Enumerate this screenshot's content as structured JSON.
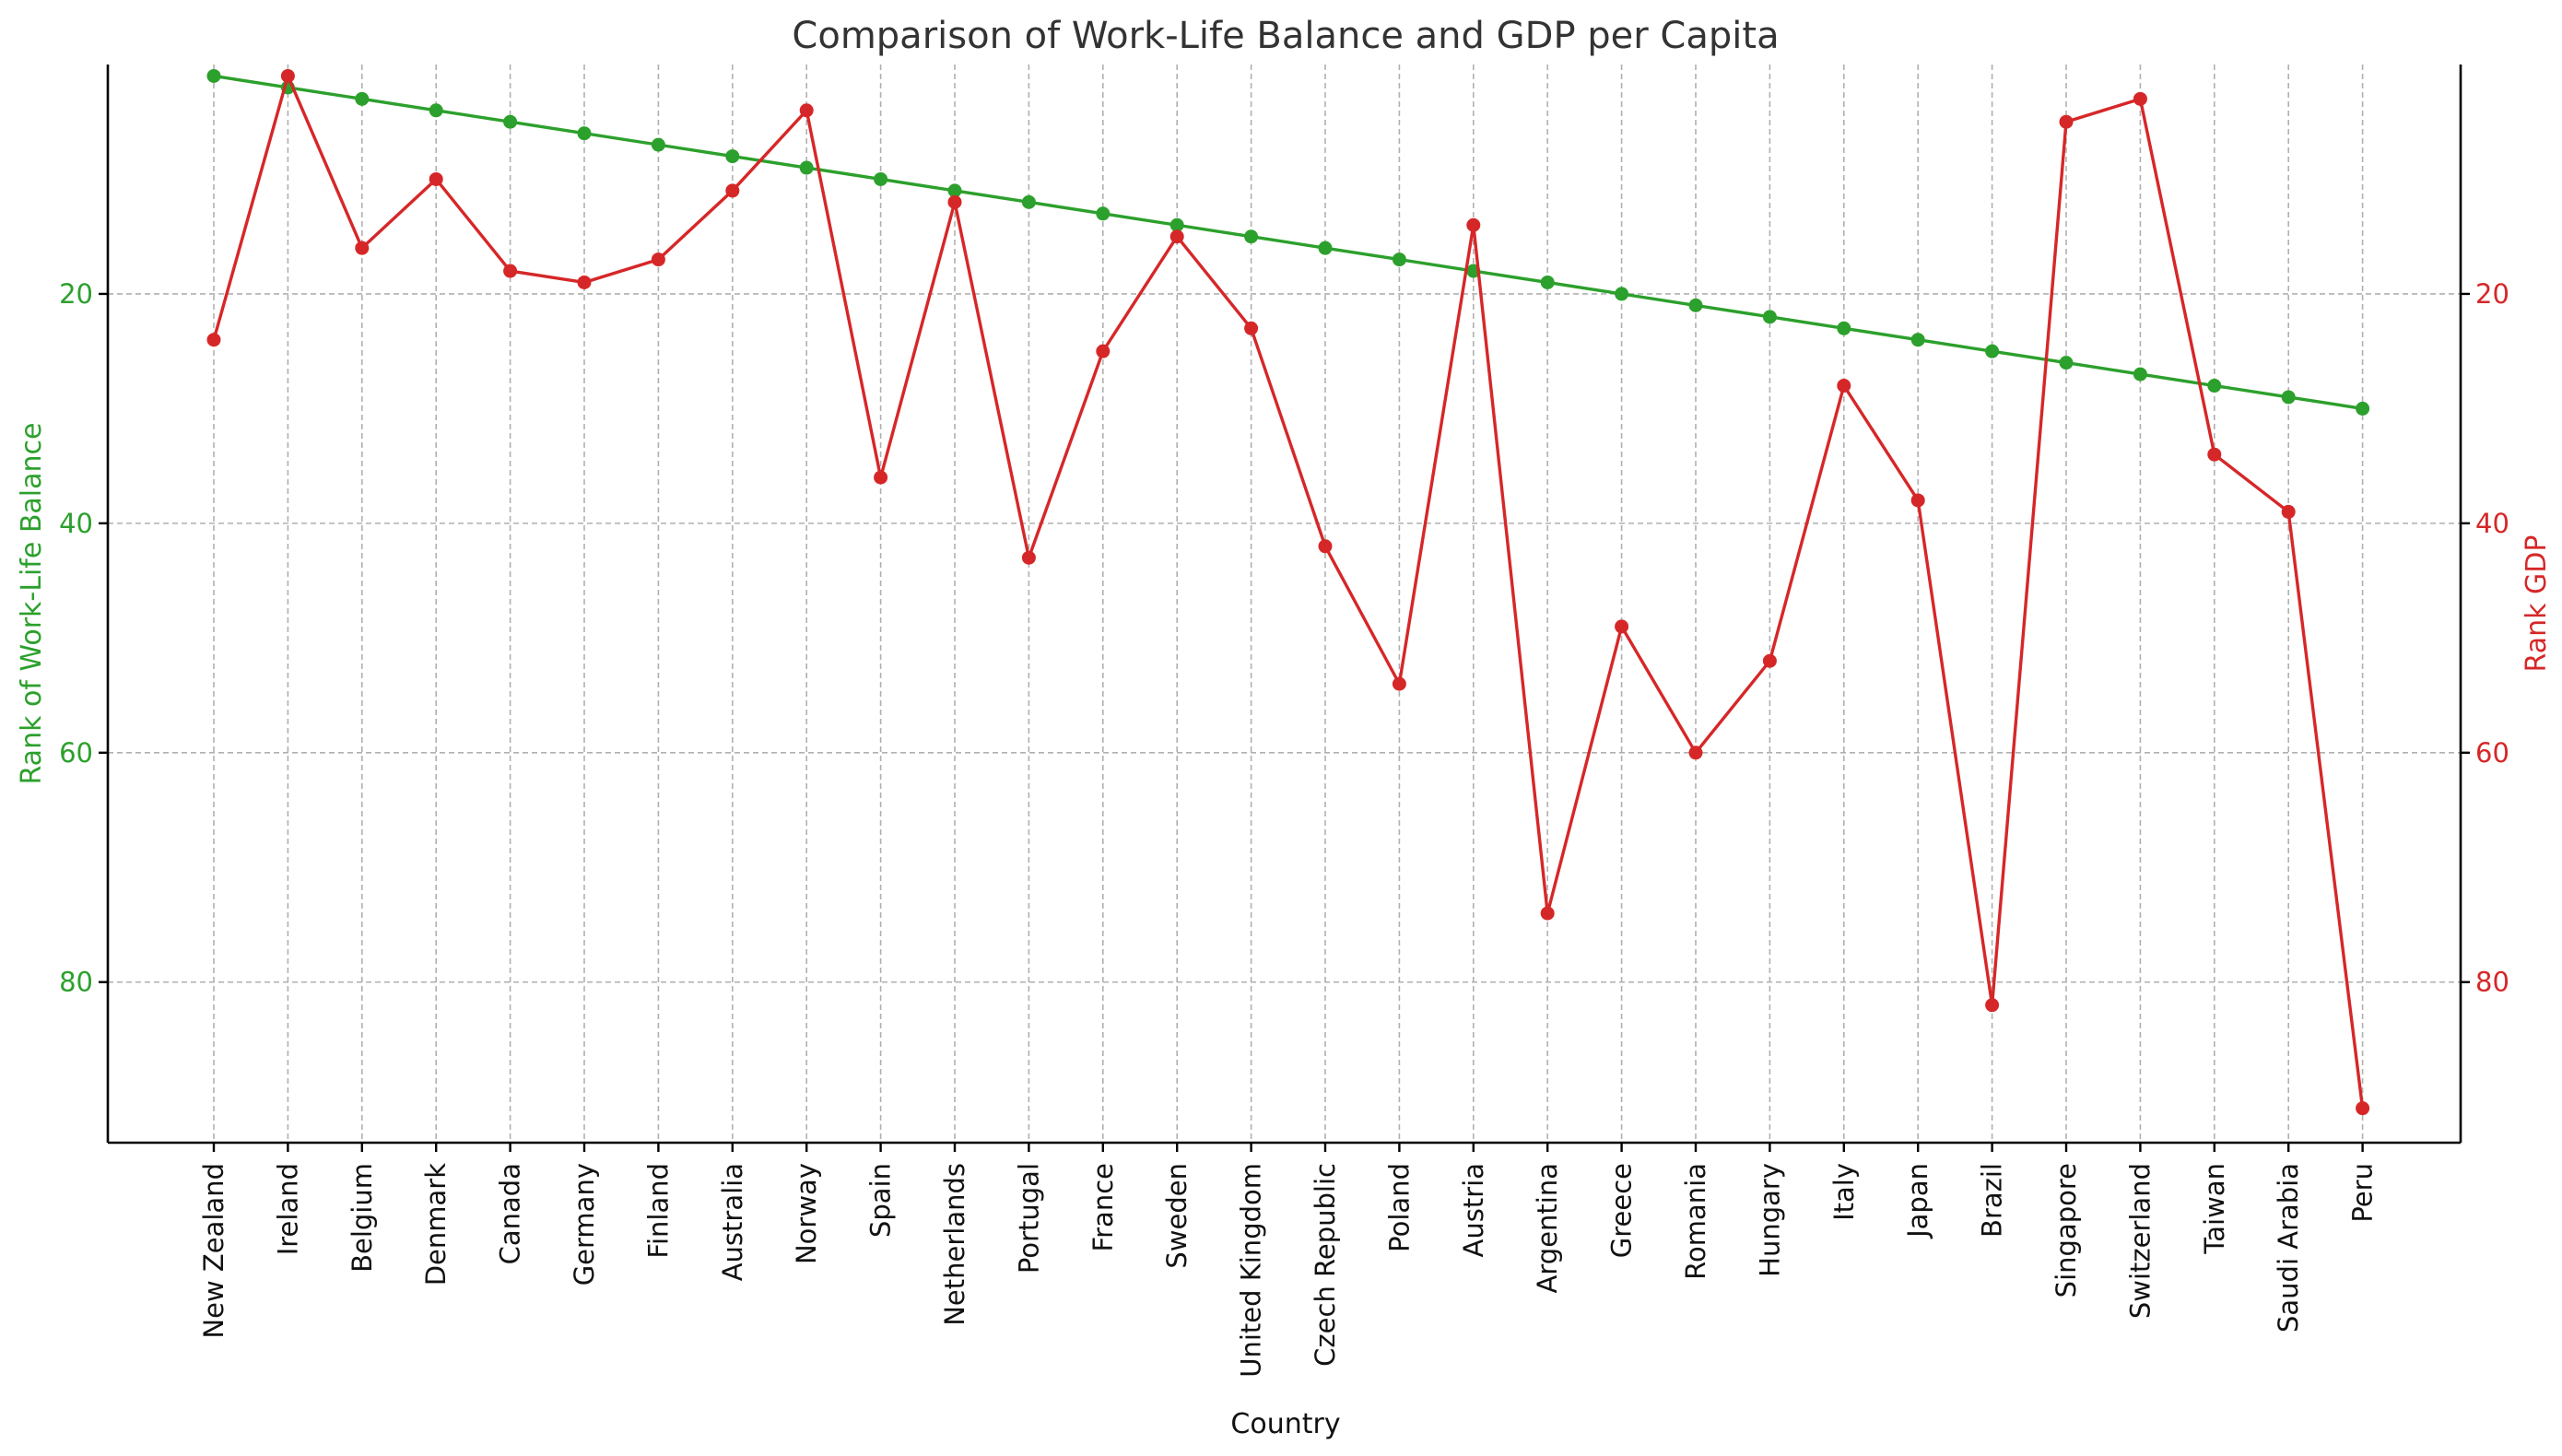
{
  "chart_data": {
    "type": "line",
    "title": "Comparison of Work-Life Balance and GDP per Capita",
    "xlabel": "Country",
    "ylabel_left": "Rank of Work-Life Balance",
    "ylabel_right": "Rank GDP",
    "ylim": [
      94,
      0
    ],
    "inverted_y": true,
    "yticks": [
      20,
      40,
      60,
      80
    ],
    "grid": true,
    "categories": [
      "New Zealand",
      "Ireland",
      "Belgium",
      "Denmark",
      "Canada",
      "Germany",
      "Finland",
      "Australia",
      "Norway",
      "Spain",
      "Netherlands",
      "Portugal",
      "France",
      "Sweden",
      "United Kingdom",
      "Czech Republic",
      "Poland",
      "Austria",
      "Argentina",
      "Greece",
      "Romania",
      "Hungary",
      "Italy",
      "Japan",
      "Brazil",
      "Singapore",
      "Switzerland",
      "Taiwan",
      "Saudi Arabia",
      "Peru"
    ],
    "series": [
      {
        "axis": "left",
        "color": "#2ca02c",
        "values": [
          1,
          2,
          3,
          4,
          5,
          6,
          7,
          8,
          9,
          10,
          11,
          12,
          13,
          14,
          15,
          16,
          17,
          18,
          19,
          20,
          21,
          22,
          23,
          24,
          25,
          26,
          27,
          28,
          29,
          30
        ]
      },
      {
        "axis": "right",
        "color": "#d62728",
        "values": [
          24,
          1,
          16,
          10,
          18,
          19,
          17,
          11,
          4,
          36,
          12,
          43,
          25,
          15,
          23,
          42,
          54,
          14,
          74,
          49,
          60,
          52,
          28,
          38,
          82,
          5,
          3,
          34,
          39,
          91
        ]
      }
    ]
  }
}
